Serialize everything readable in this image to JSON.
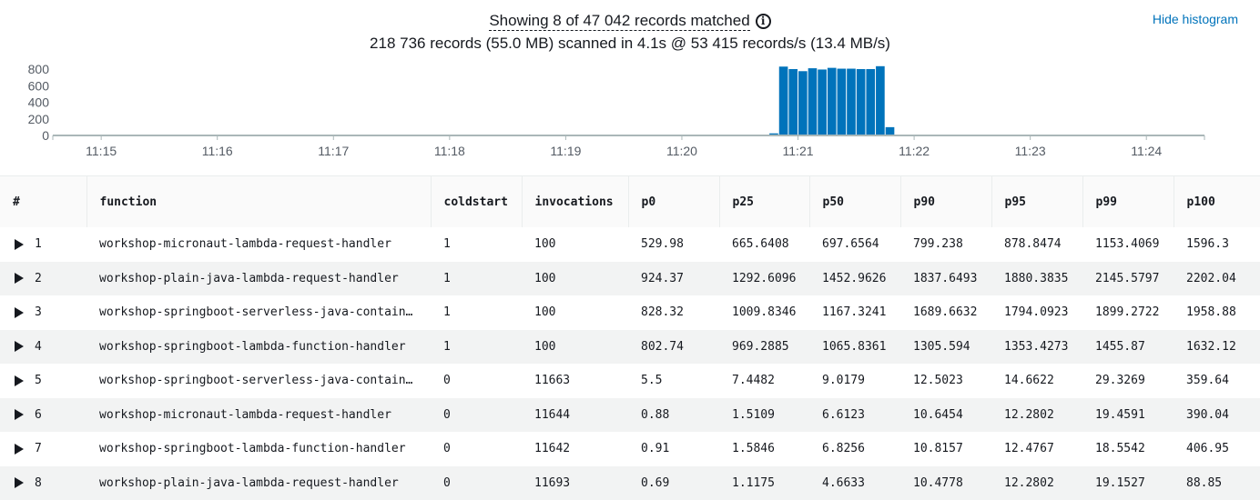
{
  "summary": {
    "matched": "Showing 8 of 47 042 records matched",
    "scanned": "218 736 records (55.0 MB) scanned in 4.1s @ 53 415 records/s (13.4 MB/s)",
    "info_icon": "info-icon"
  },
  "hide_histogram_label": "Hide histogram",
  "histogram": {
    "y_ticks": [
      "800",
      "600",
      "400",
      "200",
      "0"
    ],
    "x_ticks": [
      "11:15",
      "11:16",
      "11:17",
      "11:18",
      "11:19",
      "11:20",
      "11:21",
      "11:22",
      "11:23",
      "11:24"
    ],
    "bar_color": "#0073bb",
    "ylim": [
      0,
      800
    ]
  },
  "chart_data": {
    "type": "bar",
    "title": "",
    "xlabel": "",
    "ylabel": "",
    "ylim": [
      0,
      800
    ],
    "x_range": [
      "11:14:35",
      "11:24:30"
    ],
    "bin_seconds": 5,
    "x": [
      "11:20:45",
      "11:20:50",
      "11:20:55",
      "11:21:00",
      "11:21:05",
      "11:21:10",
      "11:21:15",
      "11:21:20",
      "11:21:25",
      "11:21:30",
      "11:21:35",
      "11:21:40",
      "11:21:45"
    ],
    "values": [
      25,
      830,
      800,
      775,
      810,
      795,
      815,
      805,
      805,
      800,
      800,
      835,
      100
    ]
  },
  "table": {
    "columns": [
      "#",
      "function",
      "coldstart",
      "invocations",
      "p0",
      "p25",
      "p50",
      "p90",
      "p95",
      "p99",
      "p100"
    ],
    "rows": [
      [
        "1",
        "workshop-micronaut-lambda-request-handler",
        "1",
        "100",
        "529.98",
        "665.6408",
        "697.6564",
        "799.238",
        "878.8474",
        "1153.4069",
        "1596.3"
      ],
      [
        "2",
        "workshop-plain-java-lambda-request-handler",
        "1",
        "100",
        "924.37",
        "1292.6096",
        "1452.9626",
        "1837.6493",
        "1880.3835",
        "2145.5797",
        "2202.04"
      ],
      [
        "3",
        "workshop-springboot-serverless-java-contain…",
        "1",
        "100",
        "828.32",
        "1009.8346",
        "1167.3241",
        "1689.6632",
        "1794.0923",
        "1899.2722",
        "1958.88"
      ],
      [
        "4",
        "workshop-springboot-lambda-function-handler",
        "1",
        "100",
        "802.74",
        "969.2885",
        "1065.8361",
        "1305.594",
        "1353.4273",
        "1455.87",
        "1632.12"
      ],
      [
        "5",
        "workshop-springboot-serverless-java-contain…",
        "0",
        "11663",
        "5.5",
        "7.4482",
        "9.0179",
        "12.5023",
        "14.6622",
        "29.3269",
        "359.64"
      ],
      [
        "6",
        "workshop-micronaut-lambda-request-handler",
        "0",
        "11644",
        "0.88",
        "1.5109",
        "6.6123",
        "10.6454",
        "12.2802",
        "19.4591",
        "390.04"
      ],
      [
        "7",
        "workshop-springboot-lambda-function-handler",
        "0",
        "11642",
        "0.91",
        "1.5846",
        "6.8256",
        "10.8157",
        "12.4767",
        "18.5542",
        "406.95"
      ],
      [
        "8",
        "workshop-plain-java-lambda-request-handler",
        "0",
        "11693",
        "0.69",
        "1.1175",
        "4.6633",
        "10.4778",
        "12.2802",
        "19.1527",
        "88.85"
      ]
    ]
  }
}
